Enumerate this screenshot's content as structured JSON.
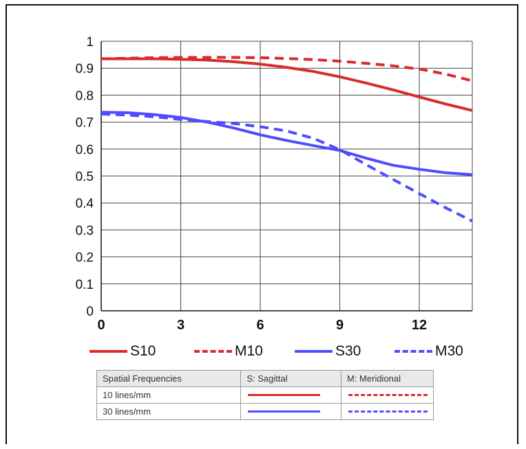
{
  "chart_data": {
    "type": "line",
    "title": "",
    "xlabel": "",
    "ylabel": "",
    "xlim": [
      0,
      14
    ],
    "ylim": [
      0,
      1
    ],
    "xticks": [
      "0",
      "3",
      "6",
      "9",
      "12"
    ],
    "yticks": [
      "0",
      "0.1",
      "0.2",
      "0.3",
      "0.4",
      "0.5",
      "0.6",
      "0.7",
      "0.8",
      "0.9",
      "1"
    ],
    "grid": true,
    "series": [
      {
        "name": "S10",
        "color": "#d92b2b",
        "style": "solid",
        "x": [
          0,
          1,
          2,
          3,
          4,
          5,
          6,
          7,
          8,
          9,
          10,
          11,
          12,
          13,
          14
        ],
        "y": [
          0.935,
          0.935,
          0.935,
          0.933,
          0.93,
          0.924,
          0.915,
          0.903,
          0.888,
          0.868,
          0.845,
          0.82,
          0.793,
          0.767,
          0.743
        ]
      },
      {
        "name": "M10",
        "color": "#d92b2b",
        "style": "dashed",
        "x": [
          0,
          1,
          2,
          3,
          4,
          5,
          6,
          7,
          8,
          9,
          10,
          11,
          12,
          13,
          14
        ],
        "y": [
          0.935,
          0.937,
          0.939,
          0.94,
          0.94,
          0.94,
          0.939,
          0.936,
          0.932,
          0.926,
          0.918,
          0.909,
          0.897,
          0.878,
          0.853
        ]
      },
      {
        "name": "S30",
        "color": "#4d4dff",
        "style": "solid",
        "x": [
          0,
          1,
          2,
          3,
          4,
          5,
          6,
          7,
          8,
          9,
          10,
          11,
          12,
          13,
          14
        ],
        "y": [
          0.737,
          0.735,
          0.728,
          0.717,
          0.7,
          0.678,
          0.653,
          0.632,
          0.613,
          0.595,
          0.566,
          0.54,
          0.525,
          0.512,
          0.505
        ]
      },
      {
        "name": "M30",
        "color": "#4d4dff",
        "style": "dashed",
        "x": [
          0,
          1,
          2,
          3,
          4,
          5,
          6,
          7,
          8,
          9,
          10,
          11,
          12,
          13,
          14
        ],
        "y": [
          0.73,
          0.726,
          0.72,
          0.71,
          0.702,
          0.695,
          0.683,
          0.667,
          0.64,
          0.598,
          0.542,
          0.488,
          0.435,
          0.382,
          0.333
        ]
      }
    ]
  },
  "legend": [
    {
      "label": "S10",
      "color": "#d92b2b",
      "style": "solid"
    },
    {
      "label": "M10",
      "color": "#d92b2b",
      "style": "dashed"
    },
    {
      "label": "S30",
      "color": "#4d4dff",
      "style": "solid"
    },
    {
      "label": "M30",
      "color": "#4d4dff",
      "style": "dashed"
    }
  ],
  "table": {
    "headers": [
      "Spatial Frequencies",
      "S: Sagittal",
      "M: Meridional"
    ],
    "rows": [
      {
        "label": "10 lines/mm",
        "color": "#d92b2b"
      },
      {
        "label": "30 lines/mm",
        "color": "#4d4dff"
      }
    ]
  }
}
